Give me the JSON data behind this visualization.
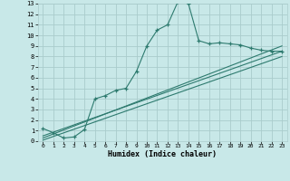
{
  "xlabel": "Humidex (Indice chaleur)",
  "bg_color": "#c8e8e8",
  "grid_color": "#aacccc",
  "line_color": "#2d7a6e",
  "xlim": [
    -0.5,
    23.5
  ],
  "ylim": [
    0,
    13
  ],
  "xticks": [
    0,
    1,
    2,
    3,
    4,
    5,
    6,
    7,
    8,
    9,
    10,
    11,
    12,
    13,
    14,
    15,
    16,
    17,
    18,
    19,
    20,
    21,
    22,
    23
  ],
  "yticks": [
    0,
    1,
    2,
    3,
    4,
    5,
    6,
    7,
    8,
    9,
    10,
    11,
    12,
    13
  ],
  "curve_x": [
    0,
    1,
    2,
    3,
    4,
    5,
    6,
    7,
    8,
    9,
    10,
    11,
    12,
    13,
    14,
    15,
    16,
    17,
    18,
    19,
    20,
    21,
    22,
    23
  ],
  "curve_y": [
    1.2,
    0.8,
    0.3,
    0.4,
    1.1,
    4.0,
    4.3,
    4.8,
    5.0,
    6.6,
    9.0,
    10.5,
    11.0,
    13.2,
    13.0,
    9.5,
    9.2,
    9.3,
    9.2,
    9.1,
    8.8,
    8.6,
    8.5,
    8.5
  ],
  "line1_x": [
    0,
    23
  ],
  "line1_y": [
    0.3,
    9.0
  ],
  "line2_x": [
    0,
    23
  ],
  "line2_y": [
    0.1,
    8.0
  ],
  "line3_x": [
    0,
    23
  ],
  "line3_y": [
    0.5,
    8.5
  ]
}
